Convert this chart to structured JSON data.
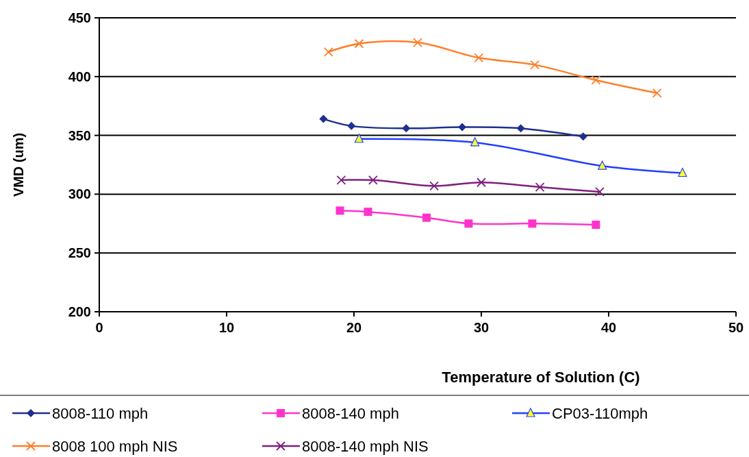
{
  "chart_data": {
    "type": "line",
    "xlabel": "Temperature of Solution (C)",
    "ylabel": "VMD (um)",
    "xlim": [
      0,
      50
    ],
    "xticks": [
      0,
      10,
      20,
      30,
      40,
      50
    ],
    "ylim": [
      200,
      450
    ],
    "yticks": [
      200,
      250,
      300,
      350,
      400,
      450
    ],
    "grid": "y",
    "legend": "bottom",
    "series": [
      {
        "name": "8008-110 mph",
        "color": "#1f2f8f",
        "marker": "diamond",
        "x": [
          17.6,
          19.8,
          24.1,
          28.5,
          33.1,
          38
        ],
        "values": [
          364,
          358,
          356,
          357,
          356,
          349
        ]
      },
      {
        "name": "8008-140 mph",
        "color": "#ff33cc",
        "marker": "square",
        "x": [
          18.9,
          21.1,
          25.7,
          29,
          34,
          39
        ],
        "values": [
          286,
          285,
          280,
          275,
          275,
          274
        ]
      },
      {
        "name": "CP03-110mph",
        "color": "#1f3fff",
        "marker": "triangle",
        "x": [
          20.4,
          29.5,
          39.5,
          45.8
        ],
        "values": [
          347,
          344,
          324,
          318
        ]
      },
      {
        "name": "8008 100 mph NIS",
        "color": "#ff7f2a",
        "marker": "cross",
        "x": [
          18,
          20.4,
          25,
          29.8,
          34.2,
          39,
          43.8
        ],
        "values": [
          421,
          428,
          429,
          416,
          410,
          397,
          386
        ]
      },
      {
        "name": "8008-140 mph NIS",
        "color": "#7f1f7f",
        "marker": "cross",
        "x": [
          19,
          21.5,
          26.3,
          30,
          34.6,
          39.3
        ],
        "values": [
          312,
          312,
          307,
          310,
          306,
          302
        ]
      }
    ]
  }
}
